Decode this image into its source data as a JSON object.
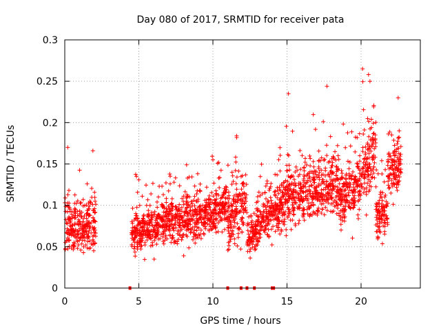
{
  "chart_data": {
    "type": "scatter",
    "title": "Day 080 of 2017, SRMTID for receiver pata",
    "xlabel": "GPS time / hours",
    "ylabel": "SRMTID / TECUs",
    "xlim": [
      0,
      24
    ],
    "ylim": [
      0,
      0.3
    ],
    "xticks": [
      0,
      5,
      10,
      15,
      20
    ],
    "yticks": [
      0,
      0.05,
      0.1,
      0.15,
      0.2,
      0.25,
      0.3
    ],
    "xtick_labels": [
      "0",
      "5",
      "10",
      "15",
      "20"
    ],
    "ytick_labels": [
      "0",
      "0.05",
      "0.1",
      "0.15",
      "0.2",
      "0.25",
      "0.3"
    ],
    "grid": true,
    "marker": "+",
    "color": "#ff0000",
    "zero_markers_x": [
      4.4,
      11.0,
      11.9,
      12.3,
      12.8,
      14.0,
      14.1
    ],
    "segments": [
      {
        "x": [
          0.0,
          2.1
        ],
        "level": [
          0.075,
          0.075
        ],
        "spread": 0.03
      },
      {
        "x": [
          4.5,
          7.0
        ],
        "level": [
          0.07,
          0.08
        ],
        "spread": 0.025
      },
      {
        "x": [
          7.0,
          9.5
        ],
        "level": [
          0.08,
          0.085
        ],
        "spread": 0.025
      },
      {
        "x": [
          9.5,
          11.0
        ],
        "level": [
          0.09,
          0.1
        ],
        "spread": 0.025
      },
      {
        "x": [
          11.0,
          12.3
        ],
        "level": [
          0.08,
          0.11
        ],
        "spread": 0.035
      },
      {
        "x": [
          12.3,
          13.0
        ],
        "level": [
          0.06,
          0.07
        ],
        "spread": 0.02
      },
      {
        "x": [
          13.0,
          14.5
        ],
        "level": [
          0.08,
          0.095
        ],
        "spread": 0.025
      },
      {
        "x": [
          14.5,
          16.5
        ],
        "level": [
          0.1,
          0.12
        ],
        "spread": 0.03
      },
      {
        "x": [
          16.5,
          18.5
        ],
        "level": [
          0.12,
          0.125
        ],
        "spread": 0.035
      },
      {
        "x": [
          18.5,
          20.0
        ],
        "level": [
          0.115,
          0.12
        ],
        "spread": 0.035
      },
      {
        "x": [
          20.0,
          21.0
        ],
        "level": [
          0.14,
          0.17
        ],
        "spread": 0.04
      },
      {
        "x": [
          21.0,
          21.8
        ],
        "level": [
          0.085,
          0.09
        ],
        "spread": 0.025
      },
      {
        "x": [
          21.8,
          22.7
        ],
        "level": [
          0.14,
          0.15
        ],
        "spread": 0.025
      }
    ],
    "points_per_hour": 125,
    "peaks": [
      {
        "x": 0.2,
        "y": 0.17
      },
      {
        "x": 1.9,
        "y": 0.166
      },
      {
        "x": 15.1,
        "y": 0.235
      },
      {
        "x": 17.7,
        "y": 0.244
      },
      {
        "x": 20.1,
        "y": 0.265
      },
      {
        "x": 20.5,
        "y": 0.258
      },
      {
        "x": 20.6,
        "y": 0.25
      },
      {
        "x": 22.5,
        "y": 0.23
      },
      {
        "x": 11.6,
        "y": 0.184
      },
      {
        "x": 10.0,
        "y": 0.155
      }
    ]
  }
}
